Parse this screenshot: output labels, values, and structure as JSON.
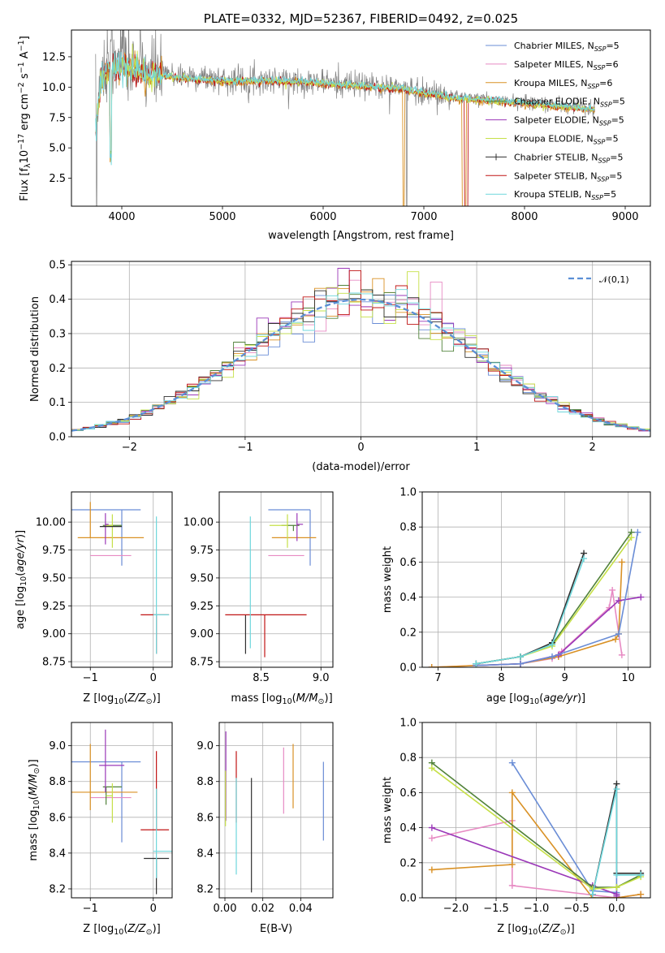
{
  "colors": [
    "#6a8dd6",
    "#e78ac3",
    "#d99125",
    "#51823a",
    "#9b38b8",
    "#c6e048",
    "#303030",
    "#c01515",
    "#6fd7dc"
  ],
  "chart_data": [
    {
      "id": "spectrum",
      "type": "line",
      "title": "PLATE=0332, MJD=52367, FIBERID=0492, z=0.025",
      "xlabel": "wavelength [Angstrom, rest frame]",
      "ylabel": "Flux [f$_\\lambda$10$^{-17}$ erg cm$^{-2}$ s$^{-1}$ A$^{-1}$]",
      "xlim": [
        3500,
        9250
      ],
      "ylim": [
        0.2,
        14.7
      ],
      "xticks": [
        4000,
        5000,
        6000,
        7000,
        8000,
        9000
      ],
      "yticks": [
        2.5,
        5.0,
        7.5,
        10.0,
        12.5
      ],
      "data_trace": {
        "x": [
          3740,
          3800,
          3900,
          4000,
          4100,
          4300,
          4500,
          4800,
          5000,
          5500,
          6000,
          6500,
          6800,
          7000,
          7400,
          7800,
          8200,
          8600,
          8700
        ],
        "y": [
          6.5,
          11.5,
          12.0,
          12.3,
          11.8,
          11.2,
          11.0,
          10.8,
          10.6,
          10.6,
          10.4,
          10.1,
          9.9,
          9.6,
          9.1,
          8.9,
          8.6,
          8.3,
          8.2
        ]
      },
      "model": {
        "x": [
          3740,
          3800,
          3900,
          4000,
          4100,
          4300,
          4500,
          4800,
          5000,
          5500,
          6000,
          6500,
          6800,
          7000,
          7400,
          7800,
          8200,
          8600,
          8700
        ],
        "y": [
          6.3,
          11.0,
          11.6,
          11.8,
          11.4,
          11.0,
          10.8,
          10.6,
          10.5,
          10.5,
          10.3,
          10.0,
          9.8,
          9.5,
          9.0,
          8.8,
          8.5,
          8.2,
          8.1
        ]
      },
      "legend": [
        {
          "label": "Chabrier MILES, N",
          "sub": "SSP",
          "suffix": "=5"
        },
        {
          "label": "Salpeter MILES, N",
          "sub": "SSP",
          "suffix": "=6"
        },
        {
          "label": "Kroupa MILES, N",
          "sub": "SSP",
          "suffix": "=6"
        },
        {
          "label": "Chabrier ELODIE, N",
          "sub": "SSP",
          "suffix": "=5"
        },
        {
          "label": "Salpeter ELODIE, N",
          "sub": "SSP",
          "suffix": "=5"
        },
        {
          "label": "Kroupa ELODIE, N",
          "sub": "SSP",
          "suffix": "=5"
        },
        {
          "label": "Chabrier STELIB, N",
          "sub": "SSP",
          "suffix": "=5"
        },
        {
          "label": "Salpeter STELIB, N",
          "sub": "SSP",
          "suffix": "=5"
        },
        {
          "label": "Kroupa STELIB, N",
          "sub": "SSP",
          "suffix": "=5"
        }
      ],
      "legend_placement": "top-right"
    },
    {
      "id": "residuals",
      "type": "step",
      "xlabel": "(data-model)/error",
      "ylabel": "Normed distribution",
      "xlim": [
        -2.5,
        2.5
      ],
      "ylim": [
        0,
        0.51
      ],
      "xticks": [
        -2,
        -1,
        0,
        1,
        2
      ],
      "yticks": [
        0.0,
        0.1,
        0.2,
        0.3,
        0.4,
        0.5
      ],
      "bin_width": 0.1,
      "legend": {
        "label": "𝒩(0,1)"
      },
      "legend_placement": "top-right",
      "grid": true
    },
    {
      "id": "age_vs_z",
      "type": "errorbar",
      "xlabel": "Z [log$_{10}$(Z/Z$_\\odot$)]",
      "ylabel": "age  [log$_{10}$(age/yr)]",
      "xlim": [
        -1.3,
        0.3
      ],
      "ylim": [
        8.7,
        10.27
      ],
      "xticks": [
        -1,
        0
      ],
      "yticks": [
        8.75,
        9.0,
        9.25,
        9.5,
        9.75,
        10.0
      ],
      "grid": true,
      "points": [
        {
          "x": -0.5,
          "xe": [
            0.8,
            0.3
          ],
          "y": 10.11,
          "ye": [
            0.5,
            0.0
          ],
          "c": 0
        },
        {
          "x": -0.7,
          "xe": [
            0.3,
            0.35
          ],
          "y": 9.7,
          "ye": [
            0.0,
            0.0
          ],
          "c": 1
        },
        {
          "x": -1.0,
          "xe": [
            0.2,
            0.85
          ],
          "y": 9.86,
          "ye": [
            0.0,
            0.32
          ],
          "c": 2
        },
        {
          "x": -0.75,
          "xe": [
            0.05,
            0.25
          ],
          "y": 9.97,
          "ye": [
            0.0,
            0.0
          ],
          "c": 3
        },
        {
          "x": -0.76,
          "xe": [
            0.0,
            0.05
          ],
          "y": 9.98,
          "ye": [
            0.18,
            0.1
          ],
          "c": 4
        },
        {
          "x": -0.65,
          "xe": [
            0.1,
            0.0
          ],
          "y": 9.97,
          "ye": [
            0.2,
            0.1
          ],
          "c": 5
        },
        {
          "x": -0.7,
          "xe": [
            0.15,
            0.2
          ],
          "y": 9.96,
          "ye": [
            0.0,
            0.0
          ],
          "c": 6
        },
        {
          "x": 0.05,
          "xe": [
            0.25,
            0.2
          ],
          "y": 9.17,
          "ye": [
            0.35,
            0.0
          ],
          "c": 7
        },
        {
          "x": 0.05,
          "xe": [
            0.05,
            0.2
          ],
          "y": 9.17,
          "ye": [
            0.35,
            0.88
          ],
          "c": 8
        }
      ]
    },
    {
      "id": "age_vs_mass",
      "type": "errorbar",
      "xlabel": "mass [log$_{10}$(M/M$_\\odot$)]",
      "ylabel": "",
      "xlim": [
        8.15,
        9.1
      ],
      "ylim": [
        8.7,
        10.27
      ],
      "xticks": [
        8.5,
        9.0
      ],
      "yticks": [
        8.75,
        9.0,
        9.25,
        9.5,
        9.75,
        10.0
      ],
      "grid": true,
      "points": [
        {
          "x": 8.91,
          "xe": [
            0.35,
            0.0
          ],
          "y": 10.11,
          "ye": [
            0.5,
            0.0
          ],
          "c": 0
        },
        {
          "x": 8.71,
          "xe": [
            0.15,
            0.15
          ],
          "y": 9.7,
          "ye": [
            0.0,
            0.0
          ],
          "c": 1
        },
        {
          "x": 8.74,
          "xe": [
            0.15,
            0.22
          ],
          "y": 9.86,
          "ye": [
            0.0,
            0.0
          ],
          "c": 2
        },
        {
          "x": 8.77,
          "xe": [
            0.1,
            0.05
          ],
          "y": 9.97,
          "ye": [
            0.05,
            0.0
          ],
          "c": 3
        },
        {
          "x": 8.8,
          "xe": [
            0.0,
            0.05
          ],
          "y": 9.98,
          "ye": [
            0.15,
            0.1
          ],
          "c": 4
        },
        {
          "x": 8.72,
          "xe": [
            0.15,
            0.0
          ],
          "y": 9.97,
          "ye": [
            0.2,
            0.1
          ],
          "c": 5
        },
        {
          "x": 8.37,
          "xe": [
            0.0,
            0.0
          ],
          "y": 9.17,
          "ye": [
            0.35,
            0.0
          ],
          "c": 6
        },
        {
          "x": 8.53,
          "xe": [
            0.33,
            0.35
          ],
          "y": 9.17,
          "ye": [
            0.38,
            0.0
          ],
          "c": 7
        },
        {
          "x": 8.41,
          "xe": [
            0.0,
            0.0
          ],
          "y": 9.17,
          "ye": [
            0.3,
            0.88
          ],
          "c": 8
        }
      ]
    },
    {
      "id": "weight_vs_age",
      "type": "line",
      "xlabel": "age  [log$_{10}$(age/yr)]",
      "ylabel": "mass weight",
      "xlim": [
        6.75,
        10.35
      ],
      "ylim": [
        0,
        1.0
      ],
      "xticks": [
        7,
        8,
        9,
        10
      ],
      "yticks": [
        0.0,
        0.2,
        0.4,
        0.6,
        0.8,
        1.0
      ],
      "grid": true,
      "series": [
        {
          "c": 1,
          "x": [
            6.9,
            7.6,
            8.3,
            8.8,
            8.95,
            9.7,
            9.75,
            9.9
          ],
          "y": [
            0.0,
            0.01,
            0.02,
            0.05,
            0.09,
            0.34,
            0.44,
            0.07
          ]
        },
        {
          "c": 2,
          "x": [
            6.9,
            7.6,
            8.3,
            8.9,
            9.8,
            9.85,
            9.9
          ],
          "y": [
            0.0,
            0.01,
            0.02,
            0.06,
            0.16,
            0.19,
            0.6
          ]
        },
        {
          "c": 4,
          "x": [
            7.6,
            8.3,
            8.9,
            9.85,
            10.2
          ],
          "y": [
            0.01,
            0.02,
            0.07,
            0.38,
            0.4
          ]
        },
        {
          "c": 0,
          "x": [
            7.6,
            8.3,
            8.8,
            9.85,
            10.15
          ],
          "y": [
            0.01,
            0.02,
            0.06,
            0.19,
            0.77
          ]
        },
        {
          "c": 3,
          "x": [
            7.6,
            8.3,
            8.8,
            10.05
          ],
          "y": [
            0.02,
            0.06,
            0.13,
            0.77
          ]
        },
        {
          "c": 5,
          "x": [
            7.6,
            8.3,
            8.8,
            10.05
          ],
          "y": [
            0.02,
            0.06,
            0.12,
            0.74
          ]
        },
        {
          "c": 6,
          "x": [
            7.6,
            8.3,
            8.8,
            9.3
          ],
          "y": [
            0.02,
            0.06,
            0.14,
            0.65
          ]
        },
        {
          "c": 8,
          "x": [
            7.6,
            8.3,
            8.8,
            9.3
          ],
          "y": [
            0.02,
            0.06,
            0.13,
            0.62
          ]
        }
      ]
    },
    {
      "id": "mass_vs_z",
      "type": "errorbar",
      "xlabel": "Z [log$_{10}$(Z/Z$_\\odot$)]",
      "ylabel": "mass [log$_{10}$(M/M$_\\odot$)]",
      "xlim": [
        -1.3,
        0.3
      ],
      "ylim": [
        8.15,
        9.13
      ],
      "xticks": [
        -1,
        0
      ],
      "yticks": [
        8.2,
        8.4,
        8.6,
        8.8,
        9.0
      ],
      "grid": true,
      "points": [
        {
          "x": -0.5,
          "xe": [
            0.8,
            0.3
          ],
          "y": 8.91,
          "ye": [
            0.45,
            0.0
          ],
          "c": 0
        },
        {
          "x": -0.7,
          "xe": [
            0.3,
            0.35
          ],
          "y": 8.71,
          "ye": [
            0.0,
            0.0
          ],
          "c": 1
        },
        {
          "x": -1.0,
          "xe": [
            0.3,
            0.75
          ],
          "y": 8.74,
          "ye": [
            0.1,
            0.27
          ],
          "c": 2
        },
        {
          "x": -0.75,
          "xe": [
            0.05,
            0.25
          ],
          "y": 8.77,
          "ye": [
            0.1,
            0.0
          ],
          "c": 3
        },
        {
          "x": -0.76,
          "xe": [
            0.1,
            0.3
          ],
          "y": 8.89,
          "ye": [
            0.15,
            0.2
          ],
          "c": 4
        },
        {
          "x": -0.65,
          "xe": [
            0.1,
            0.0
          ],
          "y": 8.72,
          "ye": [
            0.15,
            0.07
          ],
          "c": 5
        },
        {
          "x": 0.05,
          "xe": [
            0.2,
            0.2
          ],
          "y": 8.37,
          "ye": [
            0.2,
            0.0
          ],
          "c": 6
        },
        {
          "x": 0.05,
          "xe": [
            0.25,
            0.2
          ],
          "y": 8.53,
          "ye": [
            0.0,
            0.44
          ],
          "c": 7
        },
        {
          "x": 0.05,
          "xe": [
            0.05,
            0.25
          ],
          "y": 8.41,
          "ye": [
            0.15,
            0.35
          ],
          "c": 8
        }
      ]
    },
    {
      "id": "mass_vs_ebv",
      "type": "errorbar",
      "xlabel": "E(B-V)",
      "ylabel": "",
      "xlim": [
        -0.003,
        0.057
      ],
      "ylim": [
        8.15,
        9.13
      ],
      "xticks": [
        0.0,
        0.02,
        0.04
      ],
      "yticks": [
        8.2,
        8.4,
        8.6,
        8.8,
        9.0
      ],
      "grid": true,
      "points": [
        {
          "x": 0.052,
          "y": 8.69,
          "ye": [
            0.22,
            0.22
          ],
          "c": 0
        },
        {
          "x": 0.031,
          "y": 8.79,
          "ye": [
            0.17,
            0.2
          ],
          "c": 1
        },
        {
          "x": 0.036,
          "y": 8.83,
          "ye": [
            0.18,
            0.18
          ],
          "c": 2
        },
        {
          "x": 0.0005,
          "y": 8.88,
          "ye": [
            0.3,
            0.2
          ],
          "c": 4
        },
        {
          "x": 0.0003,
          "y": 8.72,
          "ye": [
            0.17,
            0.14
          ],
          "c": 5
        },
        {
          "x": 0.014,
          "y": 8.5,
          "ye": [
            0.32,
            0.32
          ],
          "c": 6
        },
        {
          "x": 0.006,
          "y": 8.77,
          "ye": [
            0.2,
            0.2
          ],
          "c": 7
        },
        {
          "x": 0.006,
          "y": 8.55,
          "ye": [
            0.27,
            0.27
          ],
          "c": 8
        }
      ]
    },
    {
      "id": "weight_vs_z",
      "type": "line",
      "xlabel": "Z [log$_{10}$(Z/Z$_\\odot$)]",
      "ylabel": "mass weight",
      "xlim": [
        -2.42,
        0.42
      ],
      "ylim": [
        0,
        1.0
      ],
      "xticks": [
        -2.0,
        -1.5,
        -1.0,
        -0.5,
        0.0
      ],
      "yticks": [
        0.0,
        0.2,
        0.4,
        0.6,
        0.8,
        1.0
      ],
      "grid": true,
      "series": [
        {
          "c": 0,
          "x": [
            -1.3,
            -0.3,
            0.0,
            0.0
          ],
          "y": [
            0.77,
            0.04,
            0.03,
            0.14
          ]
        },
        {
          "c": 1,
          "x": [
            -2.3,
            -1.3,
            -1.3,
            0.0,
            0.3
          ],
          "y": [
            0.34,
            0.44,
            0.07,
            0.0,
            0.02
          ]
        },
        {
          "c": 2,
          "x": [
            -2.3,
            -1.3,
            -1.3,
            -0.3,
            0.0,
            0.3
          ],
          "y": [
            0.16,
            0.19,
            0.6,
            0.0,
            0.0,
            0.02
          ]
        },
        {
          "c": 4,
          "x": [
            -2.3,
            -0.3,
            0.0,
            0.0
          ],
          "y": [
            0.4,
            0.07,
            0.02,
            0.01
          ]
        },
        {
          "c": 3,
          "x": [
            -2.3,
            -0.3,
            0.0,
            0.3
          ],
          "y": [
            0.77,
            0.06,
            0.06,
            0.13
          ]
        },
        {
          "c": 5,
          "x": [
            -2.3,
            -0.3,
            0.0,
            0.3
          ],
          "y": [
            0.74,
            0.05,
            0.06,
            0.12
          ]
        },
        {
          "c": 6,
          "x": [
            -0.3,
            0.0,
            0.0,
            0.3
          ],
          "y": [
            0.02,
            0.65,
            0.14,
            0.14
          ]
        },
        {
          "c": 8,
          "x": [
            -0.3,
            0.0,
            0.0,
            0.3
          ],
          "y": [
            0.02,
            0.62,
            0.13,
            0.13
          ]
        }
      ]
    }
  ]
}
